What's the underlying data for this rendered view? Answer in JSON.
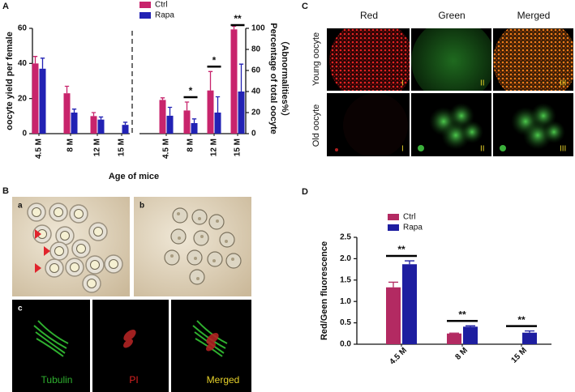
{
  "panel_labels": [
    "A",
    "B",
    "C",
    "D"
  ],
  "chart_data": [
    {
      "type": "bar",
      "xlabel": "Age of mice",
      "ylabel": "oocyte yield per female",
      "y2label": [
        "Percentage of total oocyte",
        "（Abnormalities%）"
      ],
      "categories": [
        "4.5 M",
        "8 M",
        "12 M",
        "15 M"
      ],
      "ylim": [
        0,
        60
      ],
      "yticks": [
        0,
        20,
        40,
        60
      ],
      "y2lim": [
        0,
        100
      ],
      "y2ticks": [
        0,
        20,
        40,
        60,
        80,
        100
      ],
      "series": [
        {
          "name": "Ctrl",
          "color": "#c8246c",
          "values": [
            40,
            23,
            10,
            null
          ],
          "errors": [
            4,
            4,
            2,
            null
          ]
        },
        {
          "name": "Rapa",
          "color": "#2222b4",
          "values": [
            37,
            12,
            8,
            5
          ],
          "errors": [
            6,
            2,
            1.5,
            1.5
          ]
        },
        {
          "name": "Ctrl",
          "color": "#c8246c",
          "axis": "y2",
          "values": [
            32,
            22,
            41,
            99
          ],
          "errors": [
            2,
            8,
            18,
            3
          ]
        },
        {
          "name": "Rapa",
          "color": "#2222b4",
          "axis": "y2",
          "values": [
            17,
            10,
            20,
            40
          ],
          "errors": [
            8,
            4,
            15,
            26
          ]
        }
      ],
      "annotations": [
        {
          "text": "*",
          "category": "8 M",
          "axis": "y2"
        },
        {
          "text": "*",
          "category": "12 M",
          "axis": "y2"
        },
        {
          "text": "**",
          "category": "15 M",
          "axis": "y2"
        }
      ]
    },
    {
      "type": "bar",
      "ylabel": "Red/Geen fluorescence",
      "categories": [
        "4.5 M",
        "8 M",
        "15 M"
      ],
      "ylim": [
        0,
        2.5
      ],
      "yticks": [
        {
          "value": 0,
          "label": "0.0"
        },
        0.5,
        {
          "value": 1,
          "label": "1.0"
        },
        1.5,
        {
          "value": 2,
          "label": "2.0"
        },
        2.5
      ],
      "series": [
        {
          "name": "Ctrl",
          "color": "#b32a62",
          "values": [
            1.33,
            0.25,
            null
          ],
          "errors": [
            0.12,
            0.01,
            null
          ]
        },
        {
          "name": "Rapa",
          "color": "#1e1ea0",
          "values": [
            1.87,
            0.41,
            0.27
          ],
          "errors": [
            0.08,
            0.02,
            0.04
          ]
        }
      ],
      "annotations": [
        {
          "text": "**",
          "category": "4.5 M"
        },
        {
          "text": "**",
          "category": "8 M"
        },
        {
          "text": "**",
          "category": "15 M"
        }
      ]
    }
  ],
  "panel_b": {
    "sublabels": [
      "a",
      "b",
      "c"
    ],
    "channels": [
      "Tubulin",
      "PI",
      "Merged"
    ]
  },
  "panel_c": {
    "columns": [
      "Red",
      "Green",
      "Merged"
    ],
    "rows": [
      "Young oocyte",
      "Old oocyte"
    ],
    "numerals": [
      "I",
      "II",
      "III"
    ]
  }
}
